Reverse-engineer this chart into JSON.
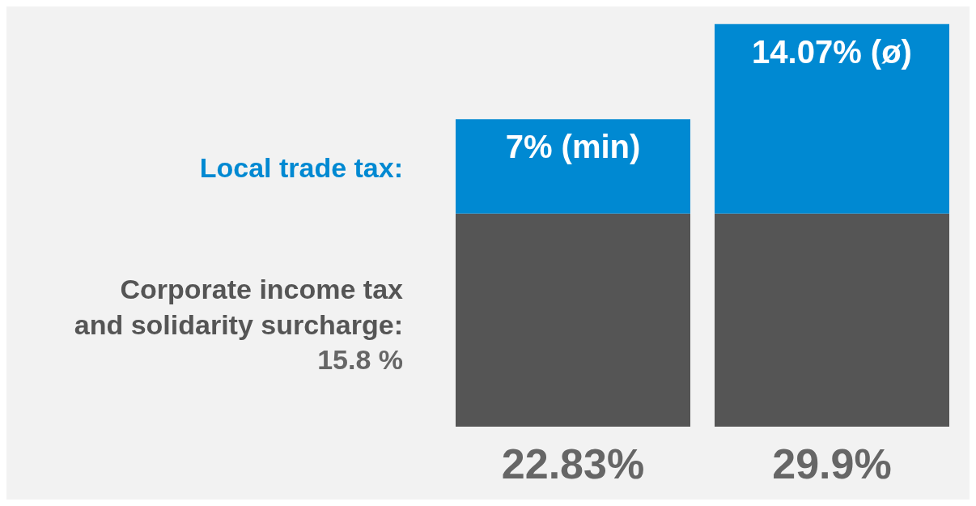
{
  "chart_data": {
    "type": "bar",
    "stacked": true,
    "categories": [
      null,
      null
    ],
    "series": [
      {
        "name": "Corporate income tax\nand solidarity surcharge:",
        "color": "#555555",
        "values": [
          15.83,
          15.83
        ]
      },
      {
        "name": "Local trade tax:",
        "color": "#0089d2",
        "values": [
          7,
          14.07
        ],
        "value_labels": [
          "7% (min)",
          "14.07% (ø)"
        ]
      }
    ],
    "totals": [
      "22.83%",
      "29.9%"
    ],
    "annotations": [
      "15.8 %"
    ]
  }
}
